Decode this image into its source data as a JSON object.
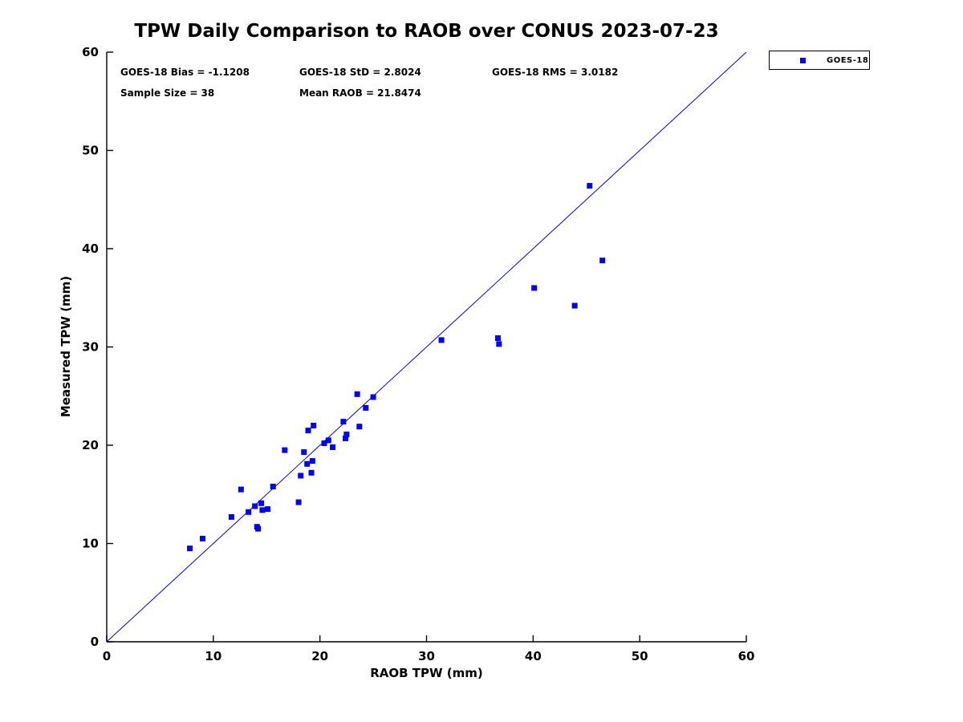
{
  "title": "TPW Daily Comparison to RAOB over CONUS 2023-07-23",
  "stats": {
    "bias": "GOES-18 Bias = -1.1208",
    "std": "GOES-18 StD = 2.8024",
    "rms": "GOES-18 RMS = 3.0182",
    "sample_size": "Sample Size = 38",
    "mean_raob": "Mean RAOB = 21.8474"
  },
  "legend": {
    "label": "GOES-18",
    "marker": "square-icon",
    "marker_color": "#0000ff"
  },
  "chart_data": {
    "type": "scatter",
    "title": "TPW Daily Comparison to RAOB over CONUS 2023-07-23",
    "xlabel": "RAOB TPW (mm)",
    "ylabel": "Measured TPW (mm)",
    "xlim": [
      0,
      60
    ],
    "ylim": [
      0,
      60
    ],
    "xticks": [
      0,
      10,
      20,
      30,
      40,
      50,
      60
    ],
    "yticks": [
      0,
      10,
      20,
      30,
      40,
      50,
      60
    ],
    "grid": false,
    "legend_position": "top-right-outside",
    "annotations": [
      "GOES-18 Bias = -1.1208",
      "GOES-18 StD = 2.8024",
      "GOES-18 RMS = 3.0182",
      "Sample Size = 38",
      "Mean RAOB = 21.8474"
    ],
    "reference_line": {
      "from": [
        0,
        0
      ],
      "to": [
        60,
        60
      ],
      "color": "#0000ee",
      "width": 1
    },
    "series": [
      {
        "name": "GOES-18",
        "marker": "square",
        "color": "#0000ff",
        "points": [
          [
            7.8,
            9.5
          ],
          [
            9.0,
            10.5
          ],
          [
            11.7,
            12.7
          ],
          [
            12.6,
            15.5
          ],
          [
            13.3,
            13.2
          ],
          [
            13.9,
            13.8
          ],
          [
            14.1,
            11.7
          ],
          [
            14.2,
            11.5
          ],
          [
            14.5,
            14.1
          ],
          [
            14.6,
            13.4
          ],
          [
            15.1,
            13.5
          ],
          [
            15.6,
            15.8
          ],
          [
            16.7,
            19.5
          ],
          [
            18.0,
            14.2
          ],
          [
            18.2,
            16.9
          ],
          [
            18.5,
            19.3
          ],
          [
            18.8,
            18.1
          ],
          [
            18.9,
            21.5
          ],
          [
            19.2,
            17.2
          ],
          [
            19.3,
            18.4
          ],
          [
            19.4,
            22.0
          ],
          [
            20.4,
            20.2
          ],
          [
            20.8,
            20.5
          ],
          [
            21.2,
            19.8
          ],
          [
            22.2,
            22.4
          ],
          [
            22.4,
            20.7
          ],
          [
            22.5,
            21.1
          ],
          [
            23.5,
            25.2
          ],
          [
            23.7,
            21.9
          ],
          [
            24.3,
            23.8
          ],
          [
            25.0,
            24.9
          ],
          [
            31.4,
            30.7
          ],
          [
            36.7,
            30.9
          ],
          [
            36.8,
            30.3
          ],
          [
            40.1,
            36.0
          ],
          [
            43.9,
            34.2
          ],
          [
            45.3,
            46.4
          ],
          [
            46.5,
            38.8
          ]
        ]
      }
    ]
  }
}
